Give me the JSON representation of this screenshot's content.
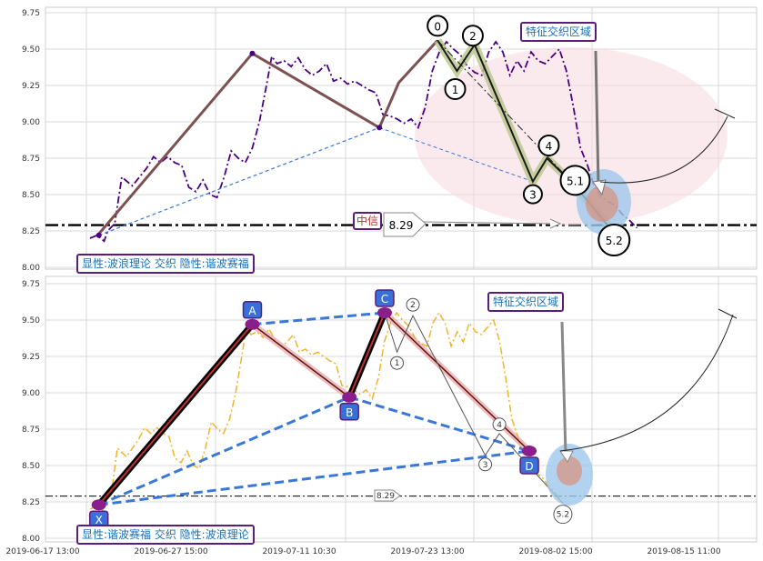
{
  "chart_data": [
    {
      "panel": "top",
      "type": "line",
      "ylim": [
        8.0,
        9.75
      ],
      "y_ticks": [
        "9.75",
        "9.50",
        "9.25",
        "9.00",
        "8.75",
        "8.50",
        "8.25",
        "8.00"
      ],
      "grid": true,
      "price": [
        [
          0.0,
          8.2
        ],
        [
          0.4,
          8.22
        ],
        [
          0.8,
          8.18
        ],
        [
          1.0,
          8.25
        ],
        [
          1.4,
          8.3
        ],
        [
          1.8,
          8.62
        ],
        [
          2.0,
          8.6
        ],
        [
          2.4,
          8.56
        ],
        [
          2.8,
          8.62
        ],
        [
          3.2,
          8.68
        ],
        [
          3.6,
          8.76
        ],
        [
          4.0,
          8.72
        ],
        [
          4.4,
          8.76
        ],
        [
          4.8,
          8.72
        ],
        [
          5.2,
          8.7
        ],
        [
          5.6,
          8.55
        ],
        [
          6.0,
          8.52
        ],
        [
          6.4,
          8.6
        ],
        [
          6.8,
          8.5
        ],
        [
          7.2,
          8.48
        ],
        [
          7.6,
          8.62
        ],
        [
          8.0,
          8.8
        ],
        [
          8.4,
          8.75
        ],
        [
          8.8,
          8.72
        ],
        [
          9.2,
          8.82
        ],
        [
          9.6,
          9.0
        ],
        [
          10.0,
          9.25
        ],
        [
          10.3,
          9.45
        ],
        [
          10.6,
          9.4
        ],
        [
          11.0,
          9.42
        ],
        [
          11.4,
          9.38
        ],
        [
          11.8,
          9.44
        ],
        [
          12.2,
          9.36
        ],
        [
          12.6,
          9.32
        ],
        [
          13.0,
          9.35
        ],
        [
          13.4,
          9.4
        ],
        [
          13.8,
          9.28
        ],
        [
          14.2,
          9.3
        ],
        [
          14.6,
          9.26
        ],
        [
          15.0,
          9.28
        ],
        [
          15.4,
          9.25
        ],
        [
          15.8,
          9.22
        ],
        [
          16.2,
          9.2
        ],
        [
          16.6,
          9.05
        ],
        [
          17.0,
          9.04
        ],
        [
          17.4,
          9.02
        ],
        [
          17.8,
          8.99
        ],
        [
          18.2,
          9.02
        ],
        [
          18.6,
          8.96
        ],
        [
          19.0,
          9.1
        ],
        [
          19.4,
          9.35
        ],
        [
          19.8,
          9.48
        ],
        [
          20.2,
          9.55
        ],
        [
          20.6,
          9.5
        ],
        [
          21.0,
          9.46
        ],
        [
          21.4,
          9.38
        ],
        [
          21.8,
          9.34
        ],
        [
          22.2,
          9.32
        ],
        [
          22.6,
          9.48
        ],
        [
          23.0,
          9.55
        ],
        [
          23.4,
          9.48
        ],
        [
          23.8,
          9.32
        ],
        [
          24.2,
          9.42
        ],
        [
          24.6,
          9.35
        ],
        [
          25.0,
          9.48
        ],
        [
          25.4,
          9.42
        ],
        [
          25.8,
          9.4
        ],
        [
          26.2,
          9.45
        ],
        [
          26.6,
          9.5
        ],
        [
          27.0,
          9.35
        ],
        [
          27.4,
          9.1
        ],
        [
          27.8,
          8.82
        ],
        [
          28.2,
          8.7
        ],
        [
          28.6,
          8.55
        ],
        [
          29.0,
          8.48
        ],
        [
          29.4,
          8.45
        ],
        [
          29.8,
          8.42
        ],
        [
          30.2,
          8.36
        ],
        [
          30.6,
          8.32
        ],
        [
          31.0,
          8.27
        ]
      ],
      "wave_points": [
        {
          "label": "0",
          "x": 19.7,
          "y": 9.56
        },
        {
          "label": "1",
          "x": 20.8,
          "y": 9.35
        },
        {
          "label": "2",
          "x": 21.8,
          "y": 9.53
        },
        {
          "label": "3",
          "x": 25.1,
          "y": 8.59
        },
        {
          "label": "4",
          "x": 25.9,
          "y": 8.75
        },
        {
          "label": "5.1",
          "x": 27.5,
          "y": 8.56
        },
        {
          "label": "5.2",
          "x": 29.6,
          "y": 8.25
        }
      ],
      "trend_lines": [
        [
          [
            0.5,
            8.23
          ],
          [
            9.2,
            9.47
          ],
          [
            16.4,
            8.96
          ],
          [
            17.5,
            9.27
          ],
          [
            19.7,
            9.56
          ]
        ]
      ],
      "support_line": 8.29,
      "target_value": "8.29",
      "mid_label": "中信",
      "zone_label": "特征交织区域",
      "footer": "显性:波浪理论 交织 隐性:谐波赛福"
    },
    {
      "panel": "bottom",
      "type": "line",
      "ylim": [
        8.0,
        9.75
      ],
      "y_ticks": [
        "9.75",
        "9.50",
        "9.25",
        "9.00",
        "8.75",
        "8.50",
        "8.25",
        "8.00"
      ],
      "x_ticks": [
        "2019-06-17 13:00",
        "2019-06-27 15:00",
        "2019-07-11 10:30",
        "2019-07-23 13:00",
        "2019-08-02 15:00",
        "2019-08-15 11:00"
      ],
      "grid": true,
      "harmonic_points": [
        {
          "label": "X",
          "x": 0.5,
          "y": 8.23
        },
        {
          "label": "A",
          "x": 9.2,
          "y": 9.47
        },
        {
          "label": "B",
          "x": 14.7,
          "y": 8.97
        },
        {
          "label": "C",
          "x": 16.7,
          "y": 9.55
        },
        {
          "label": "D",
          "x": 24.9,
          "y": 8.6
        }
      ],
      "wave_points": [
        {
          "label": "1",
          "x": 17.4,
          "y": 9.28
        },
        {
          "label": "2",
          "x": 18.3,
          "y": 9.53
        },
        {
          "label": "3",
          "x": 22.4,
          "y": 8.57
        },
        {
          "label": "4",
          "x": 23.2,
          "y": 8.72
        },
        {
          "label": "5.2",
          "x": 26.8,
          "y": 8.24
        }
      ],
      "support_line": 8.29,
      "target_value": "8.29",
      "zone_label": "特征交织区域",
      "footer": "显性:谐波赛福 交织 隐性:波浪理论"
    }
  ],
  "colors": {
    "price_top": "#4b0082",
    "price_bottom": "#f0b429",
    "trend": "#7d5151",
    "blue_dash": "#3a78d8",
    "badge_border": "#5a1e7a",
    "badge_text": "#1a6fb5",
    "zone_fill": "#f8d8df",
    "target_fill": "#9fc8ec"
  }
}
